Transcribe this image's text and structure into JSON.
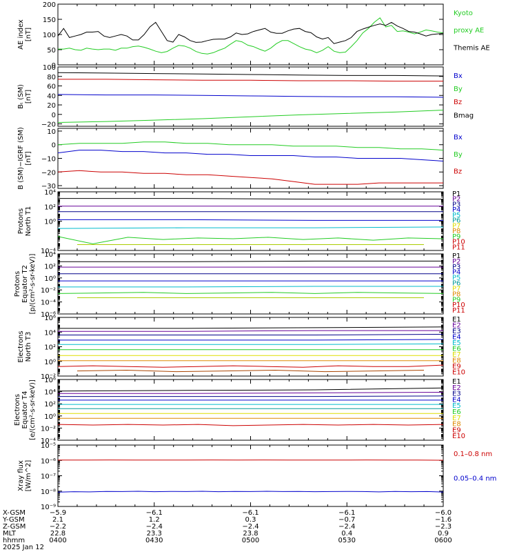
{
  "colors": {
    "black": "#000000",
    "red": "#cc0000",
    "green": "#22cc22",
    "blue": "#0000cc",
    "purple": "#660099",
    "navy": "#000088",
    "cyan": "#00bbcc",
    "teal": "#009999",
    "yellow": "#dddd00",
    "orange": "#dd8800",
    "brown": "#aa4400",
    "lime": "#aacc00"
  },
  "chart_data": [
    {
      "type": "line",
      "ylabel": "AE index [nT]",
      "ylim": [
        0,
        200
      ],
      "yticks": [
        "0",
        "50",
        "100",
        "150",
        "200"
      ],
      "ytick_vals": [
        0,
        50,
        100,
        150,
        200
      ],
      "legend": [
        {
          "label": "Kyoto",
          "color": "green"
        },
        {
          "label": "proxy AE",
          "color": "green"
        },
        {
          "label": "Themis AE",
          "color": "black"
        }
      ],
      "series": [
        {
          "name": "Kyoto proxy AE",
          "color": "green",
          "values": [
            52,
            52,
            55,
            50,
            48,
            55,
            52,
            50,
            52,
            52,
            48,
            55,
            55,
            60,
            62,
            58,
            52,
            45,
            40,
            44,
            55,
            64,
            62,
            55,
            44,
            38,
            36,
            40,
            48,
            55,
            68,
            80,
            76,
            65,
            60,
            52,
            45,
            55,
            70,
            80,
            80,
            70,
            60,
            52,
            48,
            40,
            48,
            60,
            45,
            40,
            42,
            60,
            80,
            105,
            120,
            140,
            155,
            125,
            130,
            110,
            112,
            108,
            102,
            108,
            115,
            112,
            108,
            105
          ]
        },
        {
          "name": "Themis AE",
          "color": "black",
          "values": [
            95,
            120,
            90,
            95,
            100,
            108,
            108,
            110,
            95,
            90,
            95,
            100,
            95,
            82,
            82,
            100,
            125,
            140,
            110,
            80,
            75,
            100,
            92,
            80,
            74,
            75,
            80,
            84,
            85,
            85,
            92,
            105,
            100,
            102,
            110,
            115,
            120,
            108,
            104,
            104,
            112,
            118,
            120,
            110,
            106,
            92,
            85,
            90,
            70,
            75,
            80,
            90,
            110,
            118,
            124,
            130,
            135,
            130,
            140,
            128,
            120,
            110,
            108,
            102,
            95,
            100,
            102,
            104
          ]
        }
      ]
    },
    {
      "type": "line",
      "ylabel": "B_t (SM) [nT]",
      "ylim": [
        -25,
        100
      ],
      "yticks": [
        "100",
        "80",
        "60",
        "40",
        "20",
        "0",
        "−20"
      ],
      "ytick_vals": [
        100,
        80,
        60,
        40,
        20,
        0,
        -20
      ],
      "legend": [
        {
          "label": "Bx",
          "color": "blue"
        },
        {
          "label": "By",
          "color": "green"
        },
        {
          "label": "Bz",
          "color": "red"
        },
        {
          "label": "Bmag",
          "color": "black"
        }
      ],
      "series": [
        {
          "name": "Bx",
          "color": "blue",
          "values": [
            42,
            41,
            41,
            40,
            39,
            38,
            37,
            37,
            36
          ]
        },
        {
          "name": "By",
          "color": "green",
          "values": [
            -17,
            -15,
            -12,
            -9,
            -5,
            -1,
            2,
            5,
            9
          ]
        },
        {
          "name": "Bz",
          "color": "red",
          "values": [
            74,
            74,
            73,
            72,
            72,
            71,
            71,
            70,
            70
          ]
        },
        {
          "name": "Bmag",
          "color": "black",
          "values": [
            88,
            87,
            86,
            85,
            84,
            83,
            82,
            82,
            81
          ]
        }
      ]
    },
    {
      "type": "line",
      "ylabel": "B (SM)−IGRF (SM) [nT]",
      "ylim": [
        -32,
        12
      ],
      "yticks": [
        "10",
        "0",
        "−10",
        "−20",
        "−30"
      ],
      "ytick_vals": [
        10,
        0,
        -10,
        -20,
        -30
      ],
      "legend": [
        {
          "label": "Bx",
          "color": "blue"
        },
        {
          "label": "By",
          "color": "green"
        },
        {
          "label": "Bz",
          "color": "red"
        }
      ],
      "series": [
        {
          "name": "Bx",
          "color": "blue",
          "values": [
            -6,
            -4,
            -4,
            -5,
            -5,
            -6,
            -6,
            -7,
            -7,
            -8,
            -8,
            -8,
            -9,
            -9,
            -10,
            -10,
            -10,
            -11,
            -12
          ]
        },
        {
          "name": "By",
          "color": "green",
          "values": [
            0,
            1,
            1,
            1,
            2,
            2,
            1,
            1,
            0,
            0,
            0,
            -1,
            -1,
            -1,
            -2,
            -2,
            -3,
            -3,
            -4
          ]
        },
        {
          "name": "Bz",
          "color": "red",
          "values": [
            -20,
            -19,
            -20,
            -20,
            -21,
            -21,
            -22,
            -22,
            -23,
            -24,
            -25,
            -27,
            -29,
            -29,
            -29,
            -28,
            -28,
            -28,
            -28
          ]
        }
      ]
    },
    {
      "type": "line",
      "ylabel": "Protons North T1",
      "ylog": true,
      "ylim_exp": [
        -4,
        4
      ],
      "yticks": [
        "10⁻⁴",
        "10⁰",
        "10²",
        "10⁴"
      ],
      "ytick_vals": [
        -4,
        0,
        2,
        4
      ],
      "channels": [
        "P1",
        "P2",
        "P3",
        "P4",
        "P5",
        "P6",
        "P7",
        "P8",
        "P9",
        "P10",
        "P11"
      ],
      "channel_colors": [
        "black",
        "purple",
        "navy",
        "blue",
        "cyan",
        "teal",
        "yellow",
        "orange",
        "green",
        "red",
        "red"
      ],
      "series": [
        {
          "name": "P1",
          "color": "black",
          "values": [
            3.1,
            3.1,
            3.0,
            3.0
          ]
        },
        {
          "name": "P2",
          "color": "purple",
          "values": [
            2.05,
            2.05,
            2.05,
            2.05
          ]
        },
        {
          "name": "P3",
          "color": "navy",
          "values": [
            1.3,
            1.3,
            1.3,
            1.3
          ]
        },
        {
          "name": "P4",
          "color": "blue",
          "values": [
            0.2,
            0.2,
            0.1,
            0.1
          ]
        },
        {
          "name": "P5",
          "color": "cyan",
          "values": [
            -1.0,
            -0.9,
            -0.9,
            -0.8
          ]
        },
        {
          "name": "P6",
          "color": "green",
          "values": [
            -2.1,
            -3.1,
            -2.2,
            -2.5,
            -2.3,
            -2.4,
            -2.2,
            -2.5,
            -2.3,
            -2.6,
            -2.3,
            -2.4
          ]
        },
        {
          "name": "P7",
          "color": "lime",
          "values": [
            -3.2,
            -3.2,
            -3.2
          ]
        }
      ]
    },
    {
      "type": "line",
      "ylabel": "Protons Equator T2 [p/(cm²-s-sr-keV)]",
      "ylog": true,
      "ylim_exp": [
        -6,
        4
      ],
      "yticks": [
        "10⁻⁶",
        "10⁻⁴",
        "10⁻²",
        "10⁰",
        "10²",
        "10⁴"
      ],
      "ytick_vals": [
        -6,
        -4,
        -2,
        0,
        2,
        4
      ],
      "channels": [
        "P1",
        "P2",
        "P3",
        "P4",
        "P5",
        "P6",
        "P7",
        "P8",
        "P9",
        "P10",
        "P11"
      ],
      "channel_colors": [
        "black",
        "purple",
        "navy",
        "blue",
        "cyan",
        "teal",
        "yellow",
        "orange",
        "green",
        "red",
        "red"
      ],
      "series": [
        {
          "name": "P1",
          "color": "black",
          "values": [
            2.7,
            2.7,
            2.8,
            2.8
          ]
        },
        {
          "name": "P2",
          "color": "purple",
          "values": [
            1.8,
            1.8,
            1.8,
            1.8
          ]
        },
        {
          "name": "P3",
          "color": "navy",
          "values": [
            0.7,
            0.7,
            0.7,
            0.7
          ]
        },
        {
          "name": "P4",
          "color": "blue",
          "values": [
            -0.5,
            -0.5,
            -0.5,
            -0.5
          ]
        },
        {
          "name": "P5",
          "color": "cyan",
          "values": [
            -1.5,
            -1.5,
            -1.4,
            -1.4
          ]
        },
        {
          "name": "P6",
          "color": "green",
          "values": [
            -2.6,
            -2.5,
            -2.4,
            -2.6,
            -2.5,
            -2.4,
            -2.6,
            -2.4,
            -2.5,
            -2.6
          ]
        },
        {
          "name": "P7",
          "color": "lime",
          "values": [
            -3.3,
            -3.3,
            -3.3
          ]
        }
      ]
    },
    {
      "type": "line",
      "ylabel": "Electrons North T3",
      "ylog": true,
      "ylim_exp": [
        -2,
        6
      ],
      "yticks": [
        "10⁻²",
        "10⁰",
        "10²",
        "10⁴",
        "10⁶"
      ],
      "ytick_vals": [
        -2,
        0,
        2,
        4,
        6
      ],
      "channels": [
        "E1",
        "E2",
        "E3",
        "E4",
        "E5",
        "E6",
        "E7",
        "E8",
        "E9",
        "E10"
      ],
      "channel_colors": [
        "black",
        "purple",
        "navy",
        "blue",
        "cyan",
        "green",
        "yellow",
        "orange",
        "red",
        "red"
      ],
      "series": [
        {
          "name": "E1",
          "color": "black",
          "values": [
            4.5,
            4.5,
            4.6,
            4.7
          ]
        },
        {
          "name": "E2",
          "color": "purple",
          "values": [
            4.1,
            4.1,
            4.2,
            4.2
          ]
        },
        {
          "name": "E3",
          "color": "navy",
          "values": [
            3.6,
            3.6,
            3.6,
            3.7
          ]
        },
        {
          "name": "E4",
          "color": "blue",
          "values": [
            2.9,
            2.9,
            2.9,
            3.0
          ]
        },
        {
          "name": "E5",
          "color": "cyan",
          "values": [
            2.3,
            2.3,
            2.3,
            2.4
          ]
        },
        {
          "name": "E6",
          "color": "green",
          "values": [
            1.6,
            1.6,
            1.6,
            1.6
          ]
        },
        {
          "name": "E7",
          "color": "yellow",
          "values": [
            0.8,
            0.8,
            0.8,
            0.8
          ]
        },
        {
          "name": "E8",
          "color": "orange",
          "values": [
            0.1,
            0.1,
            0.1,
            0.1
          ]
        },
        {
          "name": "E9",
          "color": "red",
          "values": [
            -0.7,
            -0.6,
            -0.7,
            -0.8,
            -0.7,
            -0.6,
            -0.7,
            -0.8,
            -0.6,
            -0.7,
            -0.7,
            -0.5
          ]
        },
        {
          "name": "E10",
          "color": "brown",
          "values": [
            -1.3,
            -1.2,
            -1.4,
            -1.3,
            -1.2,
            -1.4,
            -1.3,
            -1.2
          ]
        }
      ]
    },
    {
      "type": "line",
      "ylabel": "Electrons Equator T4 [e/(cm²-s-sr-keV)]",
      "ylog": true,
      "ylim_exp": [
        -4,
        6
      ],
      "yticks": [
        "10⁻⁴",
        "10⁻²",
        "10⁰",
        "10²",
        "10⁴",
        "10⁶"
      ],
      "ytick_vals": [
        -4,
        -2,
        0,
        2,
        4,
        6
      ],
      "channels": [
        "E1",
        "E2",
        "E3",
        "E4",
        "E5",
        "E6",
        "E7",
        "E8",
        "E9",
        "E10"
      ],
      "channel_colors": [
        "black",
        "purple",
        "navy",
        "blue",
        "cyan",
        "green",
        "yellow",
        "orange",
        "red",
        "red"
      ],
      "series": [
        {
          "name": "E1",
          "color": "black",
          "values": [
            4.1,
            4.2,
            4.3,
            4.6
          ]
        },
        {
          "name": "E2",
          "color": "purple",
          "values": [
            3.7,
            3.7,
            3.8,
            3.9
          ]
        },
        {
          "name": "E3",
          "color": "navy",
          "values": [
            3.2,
            3.2,
            3.2,
            3.3
          ]
        },
        {
          "name": "E4",
          "color": "blue",
          "values": [
            2.6,
            2.6,
            2.6,
            2.6
          ]
        },
        {
          "name": "E5",
          "color": "cyan",
          "values": [
            1.9,
            1.9,
            1.9,
            1.9
          ]
        },
        {
          "name": "E6",
          "color": "teal",
          "values": [
            1.2,
            1.2,
            1.2,
            1.2
          ]
        },
        {
          "name": "E7",
          "color": "yellow",
          "values": [
            0.4,
            0.4,
            0.4,
            0.4
          ]
        },
        {
          "name": "E8",
          "color": "orange",
          "values": [
            -0.4,
            -0.4,
            -0.4,
            -0.4
          ]
        },
        {
          "name": "E9",
          "color": "red",
          "values": [
            -1.4,
            -1.5,
            -1.4,
            -1.5,
            -1.4,
            -1.6,
            -1.5,
            -1.4,
            -1.5,
            -1.4,
            -1.5,
            -1.4
          ]
        }
      ]
    },
    {
      "type": "line",
      "ylabel": "Xray flux [W/m^2]",
      "ylog": true,
      "ylim_exp": [
        -9,
        -5
      ],
      "yticks": [
        "10⁻⁹",
        "10⁻⁸",
        "10⁻⁷",
        "10⁻⁶",
        "10⁻⁵"
      ],
      "ytick_vals": [
        -9,
        -8,
        -7,
        -6,
        -5
      ],
      "legend": [
        {
          "label": "0.1–0.8 nm",
          "color": "red"
        },
        {
          "label": "0.05–0.4 nm",
          "color": "blue"
        }
      ],
      "series": [
        {
          "name": "0.1–0.8 nm",
          "color": "red",
          "values": [
            -5.98,
            -5.98,
            -5.97,
            -5.98,
            -5.98,
            -5.98,
            -5.97,
            -5.98,
            -5.97,
            -5.98,
            -5.98,
            -5.98,
            -5.97,
            -5.98,
            -5.98,
            -5.99
          ]
        },
        {
          "name": "0.05–0.4 nm",
          "color": "blue",
          "values": [
            -8.07,
            -8.04,
            -8.05,
            -8.02,
            -8.03,
            -8.01,
            -8.04,
            -8.02,
            -8.03,
            -8.01,
            -8.04,
            -8.02,
            -8.03,
            -8.01,
            -8.03,
            -8.02,
            -8.04,
            -8.03,
            -8.02,
            -8.03,
            -8.05,
            -8.02,
            -8.04,
            -8.03,
            -8.06
          ]
        }
      ]
    }
  ],
  "axis_table": {
    "rows": [
      {
        "label": "X-GSM",
        "values": [
          "−5.9",
          "−6.1",
          "−6.1",
          "−6.1",
          "−6.0"
        ]
      },
      {
        "label": "Y-GSM",
        "values": [
          "2.1",
          "1.2",
          "0.3",
          "−0.7",
          "−1.6"
        ]
      },
      {
        "label": "Z-GSM",
        "values": [
          "−2.2",
          "−2.4",
          "−2.4",
          "−2.4",
          "−2.3"
        ]
      },
      {
        "label": "MLT",
        "values": [
          "22.8",
          "23.3",
          "23.8",
          "0.4",
          "0.9"
        ]
      },
      {
        "label": "hhmm",
        "values": [
          "0400",
          "0430",
          "0500",
          "0530",
          "0600"
        ]
      }
    ],
    "date": "2025 Jan 12"
  }
}
